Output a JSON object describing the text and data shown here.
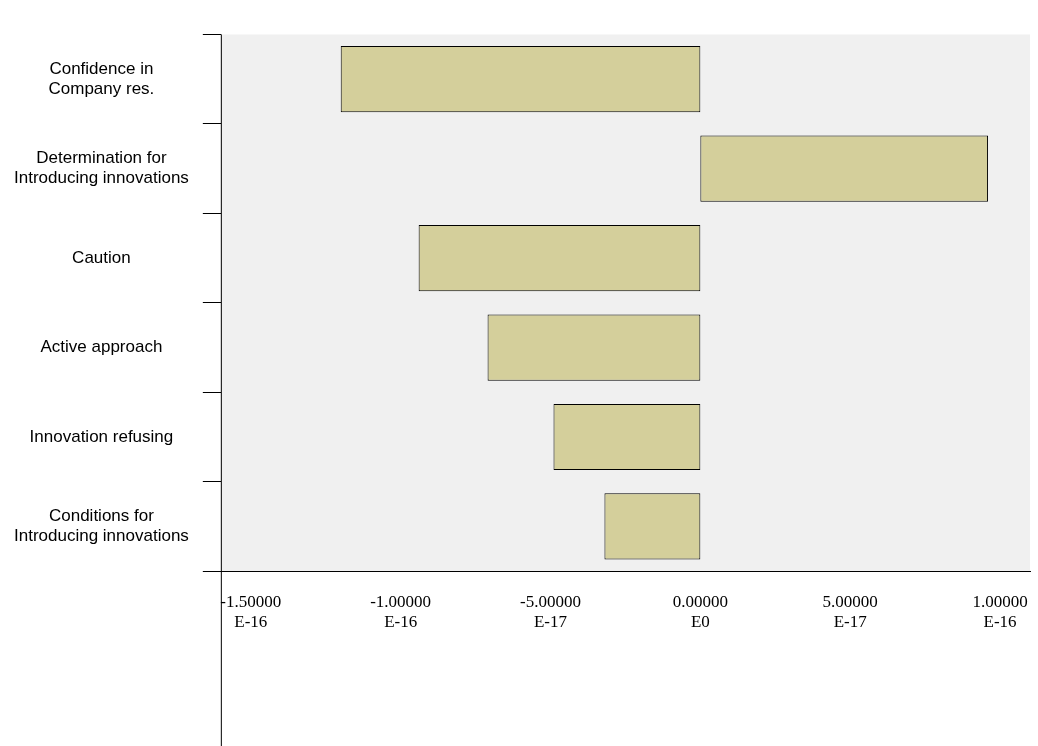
{
  "chart_data": {
    "type": "bar",
    "orientation": "horizontal",
    "categories": [
      "Confidence in\nCompany res.",
      "Determination for\nIntroducing innovations",
      "Caution",
      "Active approach",
      "Innovation refusing",
      "Conditions for\nIntroducing innovations"
    ],
    "values": [
      -1.2e-16,
      9.6e-17,
      -9.4e-17,
      -7.1e-17,
      -4.9e-17,
      -3.2e-17
    ],
    "color": "#d4cf9b",
    "xlim": [
      -1.6e-16,
      1.1e-16
    ],
    "xticks": [
      {
        "value": -1.5e-16,
        "label": "-1.50000E-16"
      },
      {
        "value": -1e-16,
        "label": "-1.00000E-16"
      },
      {
        "value": -5e-17,
        "label": "-5.00000E-17"
      },
      {
        "value": 0,
        "label": "0.00000E0"
      },
      {
        "value": 5e-17,
        "label": "5.00000E-17"
      },
      {
        "value": 1e-16,
        "label": "1.00000E-16"
      }
    ],
    "grid": false,
    "legend": false
  }
}
